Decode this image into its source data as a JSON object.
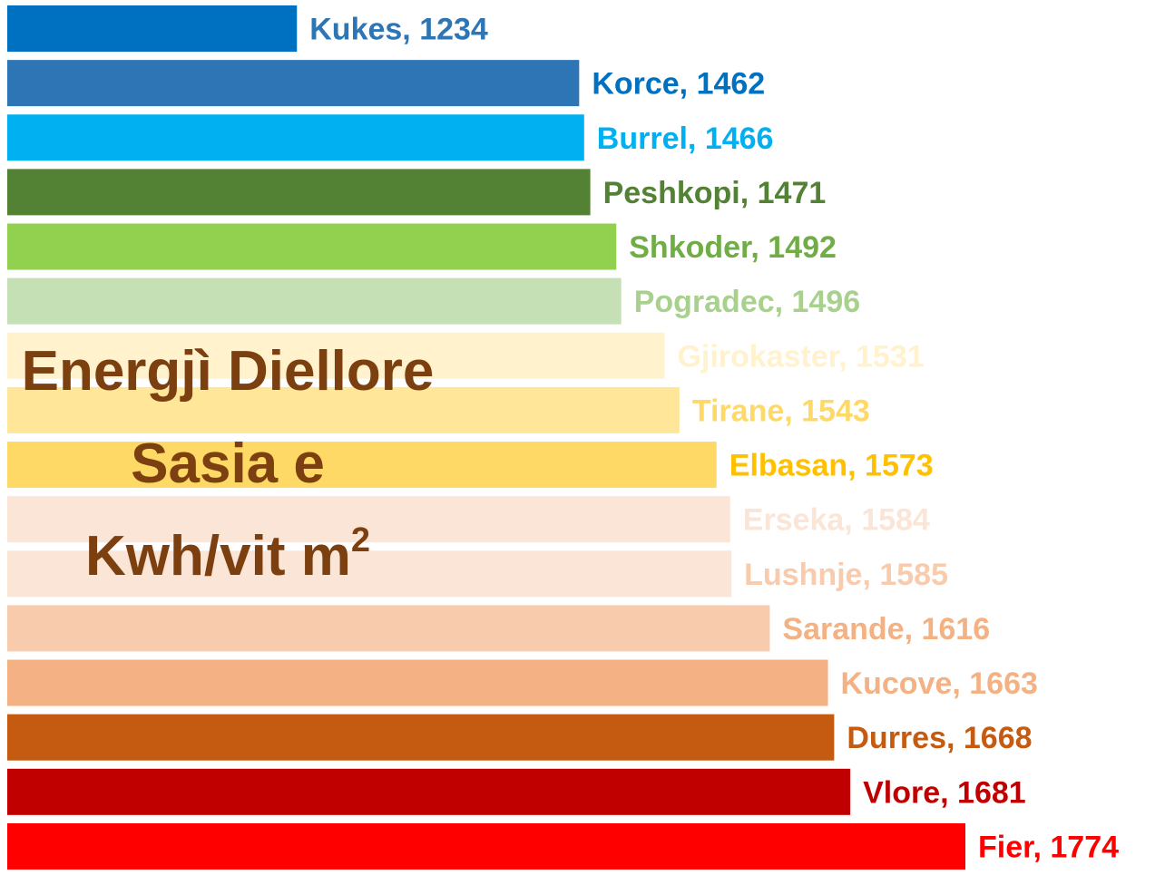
{
  "chart_data": {
    "type": "bar",
    "orientation": "horizontal",
    "title_lines": [
      "Energjì Diellore",
      "Sasia e",
      "Kwh/vit m"
    ],
    "title_superscript": "2",
    "title_color": "#7b3f10",
    "categories": [
      "Kukes",
      "Korce",
      "Burrel",
      "Peshkopi",
      "Shkoder",
      "Pogradec",
      "Gjirokaster",
      "Tirane",
      "Elbasan",
      "Erseka",
      "Lushnje",
      "Sarande",
      "Kucove",
      "Durres",
      "Vlore",
      "Fier"
    ],
    "values": [
      1234,
      1462,
      1466,
      1471,
      1492,
      1496,
      1531,
      1543,
      1573,
      1584,
      1585,
      1616,
      1663,
      1668,
      1681,
      1774
    ],
    "labels": [
      "Kukes, 1234",
      "Korce, 1462",
      "Burrel, 1466",
      "Peshkopi, 1471",
      "Shkoder, 1492",
      "Pogradec, 1496",
      "Gjirokaster, 1531",
      "Tirane, 1543",
      "Elbasan, 1573",
      "Erseka, 1584",
      "Lushnje, 1585",
      "Sarande, 1616",
      "Kucove, 1663",
      "Durres, 1668",
      "Vlore, 1681",
      "Fier, 1774"
    ],
    "colors": [
      "#0070c0",
      "#2e75b6",
      "#00b0f0",
      "#548235",
      "#92d050",
      "#c5e0b4",
      "#fff2cc",
      "#ffe699",
      "#ffd966",
      "#fbe5d6",
      "#fbe5d6",
      "#f8cbad",
      "#f4b183",
      "#c55a11",
      "#c00000",
      "#ff0000"
    ],
    "label_colors": [
      "#2e75b6",
      "#0070c0",
      "#00b0f0",
      "#548235",
      "#70ad47",
      "#a9d18e",
      "#fff2cc",
      "#ffd966",
      "#ffc000",
      "#fbe5d6",
      "#f8cbad",
      "#f4b183",
      "#f4b183",
      "#c55a11",
      "#c00000",
      "#ff0000"
    ],
    "xlim": [
      1000,
      1774
    ],
    "grid": false,
    "legend": "none",
    "xlabel": "",
    "ylabel": ""
  }
}
